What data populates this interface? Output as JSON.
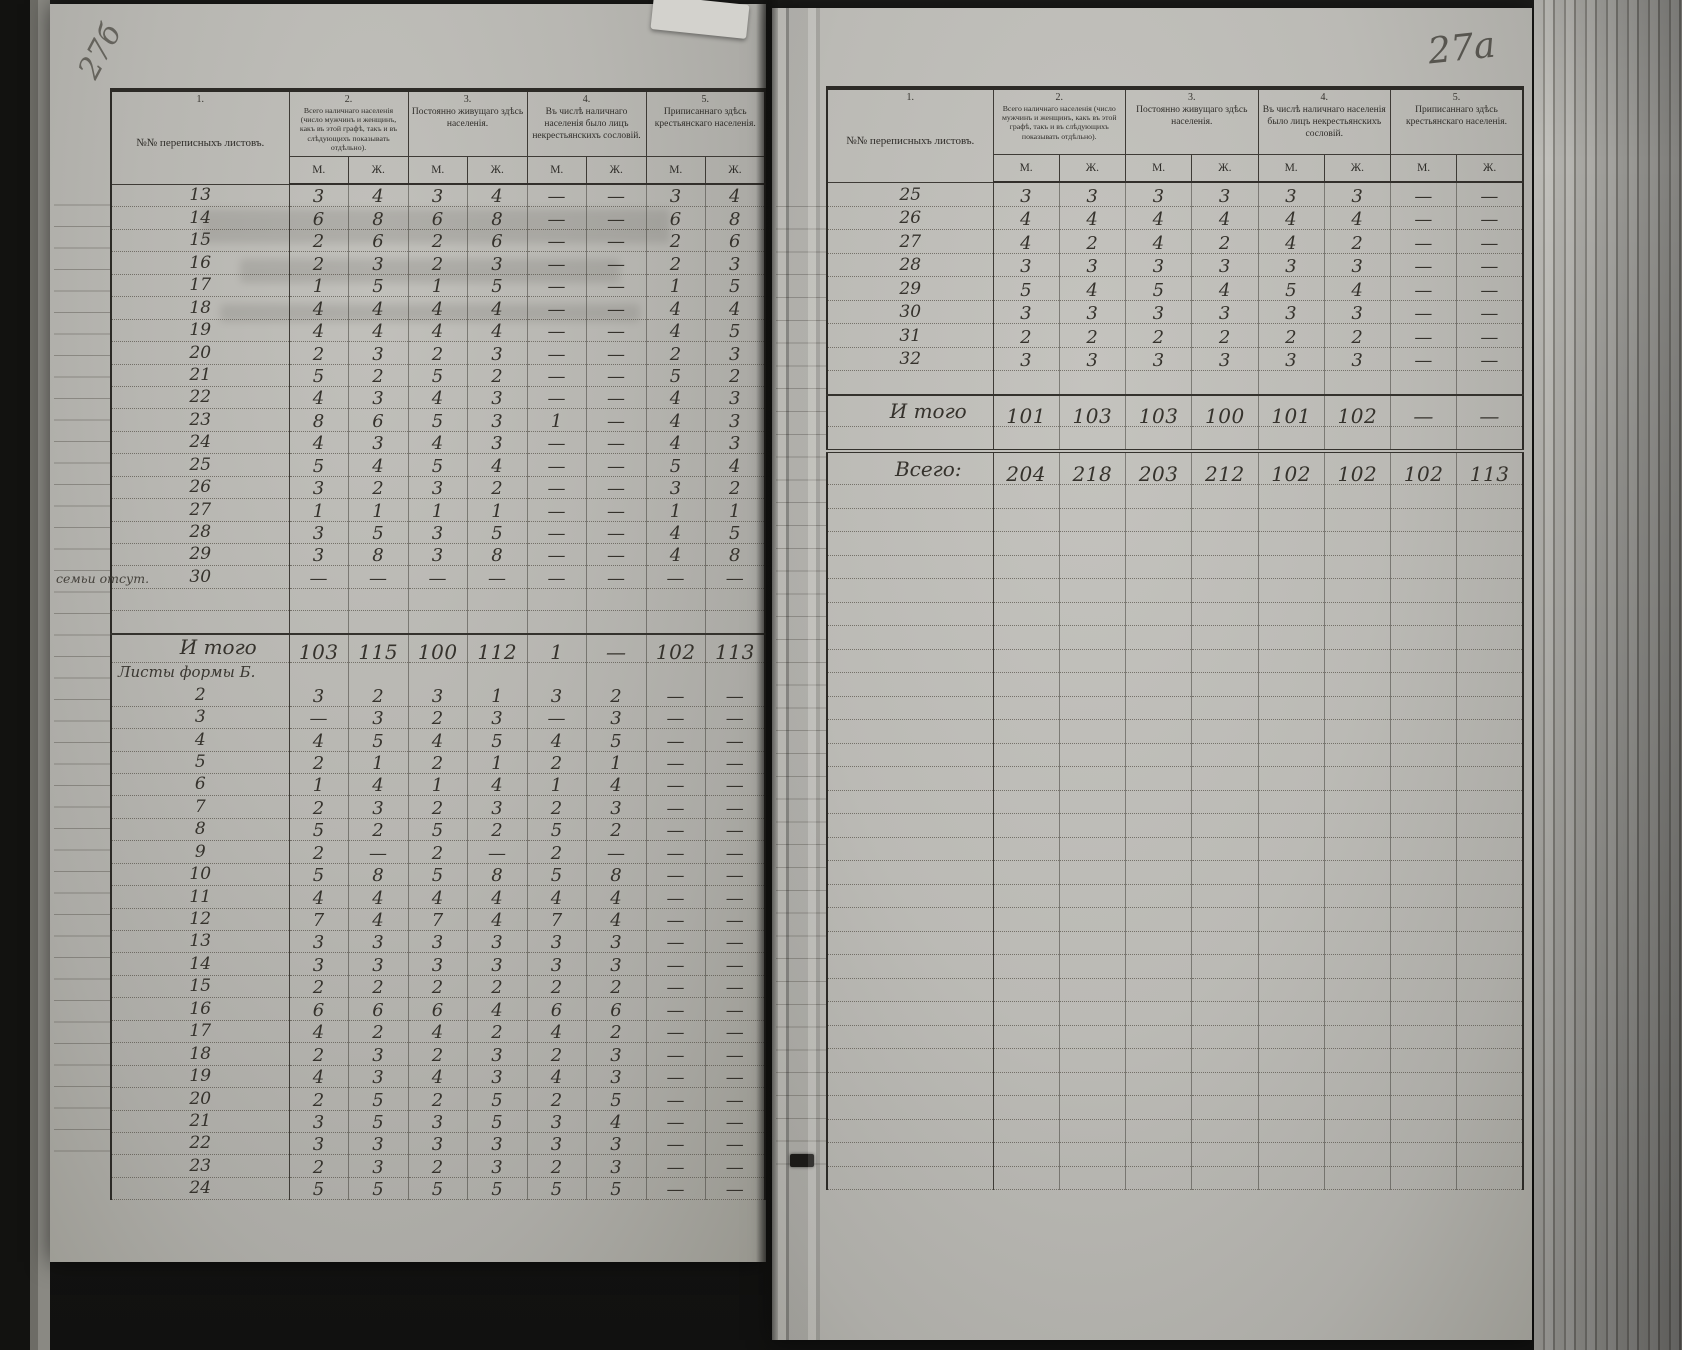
{
  "annotations": {
    "left": "27б",
    "right": "27а"
  },
  "header": {
    "cols": [
      {
        "num": "1.",
        "title": "№№ переписныхъ листовъ."
      },
      {
        "num": "2.",
        "title": "Всего наличнаго населенія (число мужчинъ и женщинъ, какъ въ этой графѣ, такъ и въ слѣдующихъ показывать отдѣльно)."
      },
      {
        "num": "3.",
        "title": "Постоянно живущаго здѣсь населенія."
      },
      {
        "num": "4.",
        "title": "Въ числѣ наличнаго населенія было лицъ некрестьянскихъ сословій."
      },
      {
        "num": "5.",
        "title": "Приписаннаго здѣсь крестьянскаго населенія."
      }
    ],
    "m_label": "М.",
    "f_label": "Ж."
  },
  "left_page": {
    "sections": [
      {
        "type": "rows",
        "rows": [
          {
            "no": "13",
            "vals": [
              "3",
              "4",
              "3",
              "4",
              "—",
              "—",
              "3",
              "4"
            ]
          },
          {
            "no": "14",
            "vals": [
              "6",
              "8",
              "6",
              "8",
              "—",
              "—",
              "6",
              "8"
            ]
          },
          {
            "no": "15",
            "vals": [
              "2",
              "6",
              "2",
              "6",
              "—",
              "—",
              "2",
              "6"
            ]
          },
          {
            "no": "16",
            "vals": [
              "2",
              "3",
              "2",
              "3",
              "—",
              "—",
              "2",
              "3"
            ]
          },
          {
            "no": "17",
            "vals": [
              "1",
              "5",
              "1",
              "5",
              "—",
              "—",
              "1",
              "5"
            ]
          },
          {
            "no": "18",
            "vals": [
              "4",
              "4",
              "4",
              "4",
              "—",
              "—",
              "4",
              "4"
            ]
          },
          {
            "no": "19",
            "vals": [
              "4",
              "4",
              "4",
              "4",
              "—",
              "—",
              "4",
              "5"
            ]
          },
          {
            "no": "20",
            "vals": [
              "2",
              "3",
              "2",
              "3",
              "—",
              "—",
              "2",
              "3"
            ]
          },
          {
            "no": "21",
            "vals": [
              "5",
              "2",
              "5",
              "2",
              "—",
              "—",
              "5",
              "2"
            ]
          },
          {
            "no": "22",
            "vals": [
              "4",
              "3",
              "4",
              "3",
              "—",
              "—",
              "4",
              "3"
            ]
          },
          {
            "no": "23",
            "vals": [
              "8",
              "6",
              "5",
              "3",
              "1",
              "—",
              "4",
              "3"
            ]
          },
          {
            "no": "24",
            "vals": [
              "4",
              "3",
              "4",
              "3",
              "—",
              "—",
              "4",
              "3"
            ]
          },
          {
            "no": "25",
            "vals": [
              "5",
              "4",
              "5",
              "4",
              "—",
              "—",
              "5",
              "4"
            ]
          },
          {
            "no": "26",
            "vals": [
              "3",
              "2",
              "3",
              "2",
              "—",
              "—",
              "3",
              "2"
            ]
          },
          {
            "no": "27",
            "vals": [
              "1",
              "1",
              "1",
              "1",
              "—",
              "—",
              "1",
              "1"
            ]
          },
          {
            "no": "28",
            "vals": [
              "3",
              "5",
              "3",
              "5",
              "—",
              "—",
              "4",
              "5"
            ]
          },
          {
            "no": "29",
            "vals": [
              "3",
              "8",
              "3",
              "8",
              "—",
              "—",
              "4",
              "8"
            ]
          },
          {
            "no": "30",
            "note": "семьи отсут.",
            "vals": [
              "—",
              "—",
              "—",
              "—",
              "—",
              "—",
              "—",
              "—"
            ]
          }
        ]
      },
      {
        "type": "empty",
        "count": 2
      },
      {
        "type": "total",
        "label": "И того",
        "vals": [
          "103",
          "115",
          "100",
          "112",
          "1",
          "—",
          "102",
          "113"
        ]
      },
      {
        "type": "label",
        "text": "Листы формы Б."
      },
      {
        "type": "rows",
        "rows": [
          {
            "no": "2",
            "vals": [
              "3",
              "2",
              "3",
              "1",
              "3",
              "2",
              "—",
              "—"
            ]
          },
          {
            "no": "3",
            "vals": [
              "—",
              "3",
              "2",
              "3",
              "—",
              "3",
              "—",
              "—"
            ]
          },
          {
            "no": "4",
            "vals": [
              "4",
              "5",
              "4",
              "5",
              "4",
              "5",
              "—",
              "—"
            ]
          },
          {
            "no": "5",
            "vals": [
              "2",
              "1",
              "2",
              "1",
              "2",
              "1",
              "—",
              "—"
            ]
          },
          {
            "no": "6",
            "vals": [
              "1",
              "4",
              "1",
              "4",
              "1",
              "4",
              "—",
              "—"
            ]
          },
          {
            "no": "7",
            "vals": [
              "2",
              "3",
              "2",
              "3",
              "2",
              "3",
              "—",
              "—"
            ]
          },
          {
            "no": "8",
            "vals": [
              "5",
              "2",
              "5",
              "2",
              "5",
              "2",
              "—",
              "—"
            ]
          },
          {
            "no": "9",
            "vals": [
              "2",
              "—",
              "2",
              "—",
              "2",
              "—",
              "—",
              "—"
            ]
          },
          {
            "no": "10",
            "vals": [
              "5",
              "8",
              "5",
              "8",
              "5",
              "8",
              "—",
              "—"
            ]
          },
          {
            "no": "11",
            "vals": [
              "4",
              "4",
              "4",
              "4",
              "4",
              "4",
              "—",
              "—"
            ]
          },
          {
            "no": "12",
            "vals": [
              "7",
              "4",
              "7",
              "4",
              "7",
              "4",
              "—",
              "—"
            ]
          },
          {
            "no": "13",
            "vals": [
              "3",
              "3",
              "3",
              "3",
              "3",
              "3",
              "—",
              "—"
            ]
          },
          {
            "no": "14",
            "vals": [
              "3",
              "3",
              "3",
              "3",
              "3",
              "3",
              "—",
              "—"
            ]
          },
          {
            "no": "15",
            "vals": [
              "2",
              "2",
              "2",
              "2",
              "2",
              "2",
              "—",
              "—"
            ]
          },
          {
            "no": "16",
            "vals": [
              "6",
              "6",
              "6",
              "4",
              "6",
              "6",
              "—",
              "—"
            ]
          },
          {
            "no": "17",
            "vals": [
              "4",
              "2",
              "4",
              "2",
              "4",
              "2",
              "—",
              "—"
            ]
          },
          {
            "no": "18",
            "vals": [
              "2",
              "3",
              "2",
              "3",
              "2",
              "3",
              "—",
              "—"
            ]
          },
          {
            "no": "19",
            "vals": [
              "4",
              "3",
              "4",
              "3",
              "4",
              "3",
              "—",
              "—"
            ]
          },
          {
            "no": "20",
            "vals": [
              "2",
              "5",
              "2",
              "5",
              "2",
              "5",
              "—",
              "—"
            ]
          },
          {
            "no": "21",
            "vals": [
              "3",
              "5",
              "3",
              "5",
              "3",
              "4",
              "—",
              "—"
            ]
          },
          {
            "no": "22",
            "vals": [
              "3",
              "3",
              "3",
              "3",
              "3",
              "3",
              "—",
              "—"
            ]
          },
          {
            "no": "23",
            "vals": [
              "2",
              "3",
              "2",
              "3",
              "2",
              "3",
              "—",
              "—"
            ]
          },
          {
            "no": "24",
            "vals": [
              "5",
              "5",
              "5",
              "5",
              "5",
              "5",
              "—",
              "—"
            ]
          }
        ]
      }
    ]
  },
  "right_page": {
    "sections": [
      {
        "type": "rows",
        "rows": [
          {
            "no": "25",
            "vals": [
              "3",
              "3",
              "3",
              "3",
              "3",
              "3",
              "—",
              "—"
            ]
          },
          {
            "no": "26",
            "vals": [
              "4",
              "4",
              "4",
              "4",
              "4",
              "4",
              "—",
              "—"
            ]
          },
          {
            "no": "27",
            "vals": [
              "4",
              "2",
              "4",
              "2",
              "4",
              "2",
              "—",
              "—"
            ]
          },
          {
            "no": "28",
            "vals": [
              "3",
              "3",
              "3",
              "3",
              "3",
              "3",
              "—",
              "—"
            ]
          },
          {
            "no": "29",
            "vals": [
              "5",
              "4",
              "5",
              "4",
              "5",
              "4",
              "—",
              "—"
            ]
          },
          {
            "no": "30",
            "vals": [
              "3",
              "3",
              "3",
              "3",
              "3",
              "3",
              "—",
              "—"
            ]
          },
          {
            "no": "31",
            "vals": [
              "2",
              "2",
              "2",
              "2",
              "2",
              "2",
              "—",
              "—"
            ]
          },
          {
            "no": "32",
            "vals": [
              "3",
              "3",
              "3",
              "3",
              "3",
              "3",
              "—",
              "—"
            ]
          }
        ]
      },
      {
        "type": "empty",
        "count": 1
      },
      {
        "type": "total",
        "label": "И того",
        "vals": [
          "101",
          "103",
          "103",
          "100",
          "101",
          "102",
          "—",
          "—"
        ]
      },
      {
        "type": "empty",
        "count": 1
      },
      {
        "type": "grand",
        "label": "Всего:",
        "vals": [
          "204",
          "218",
          "203",
          "212",
          "102",
          "102",
          "102",
          "113"
        ]
      },
      {
        "type": "empty",
        "count": 30
      }
    ]
  }
}
